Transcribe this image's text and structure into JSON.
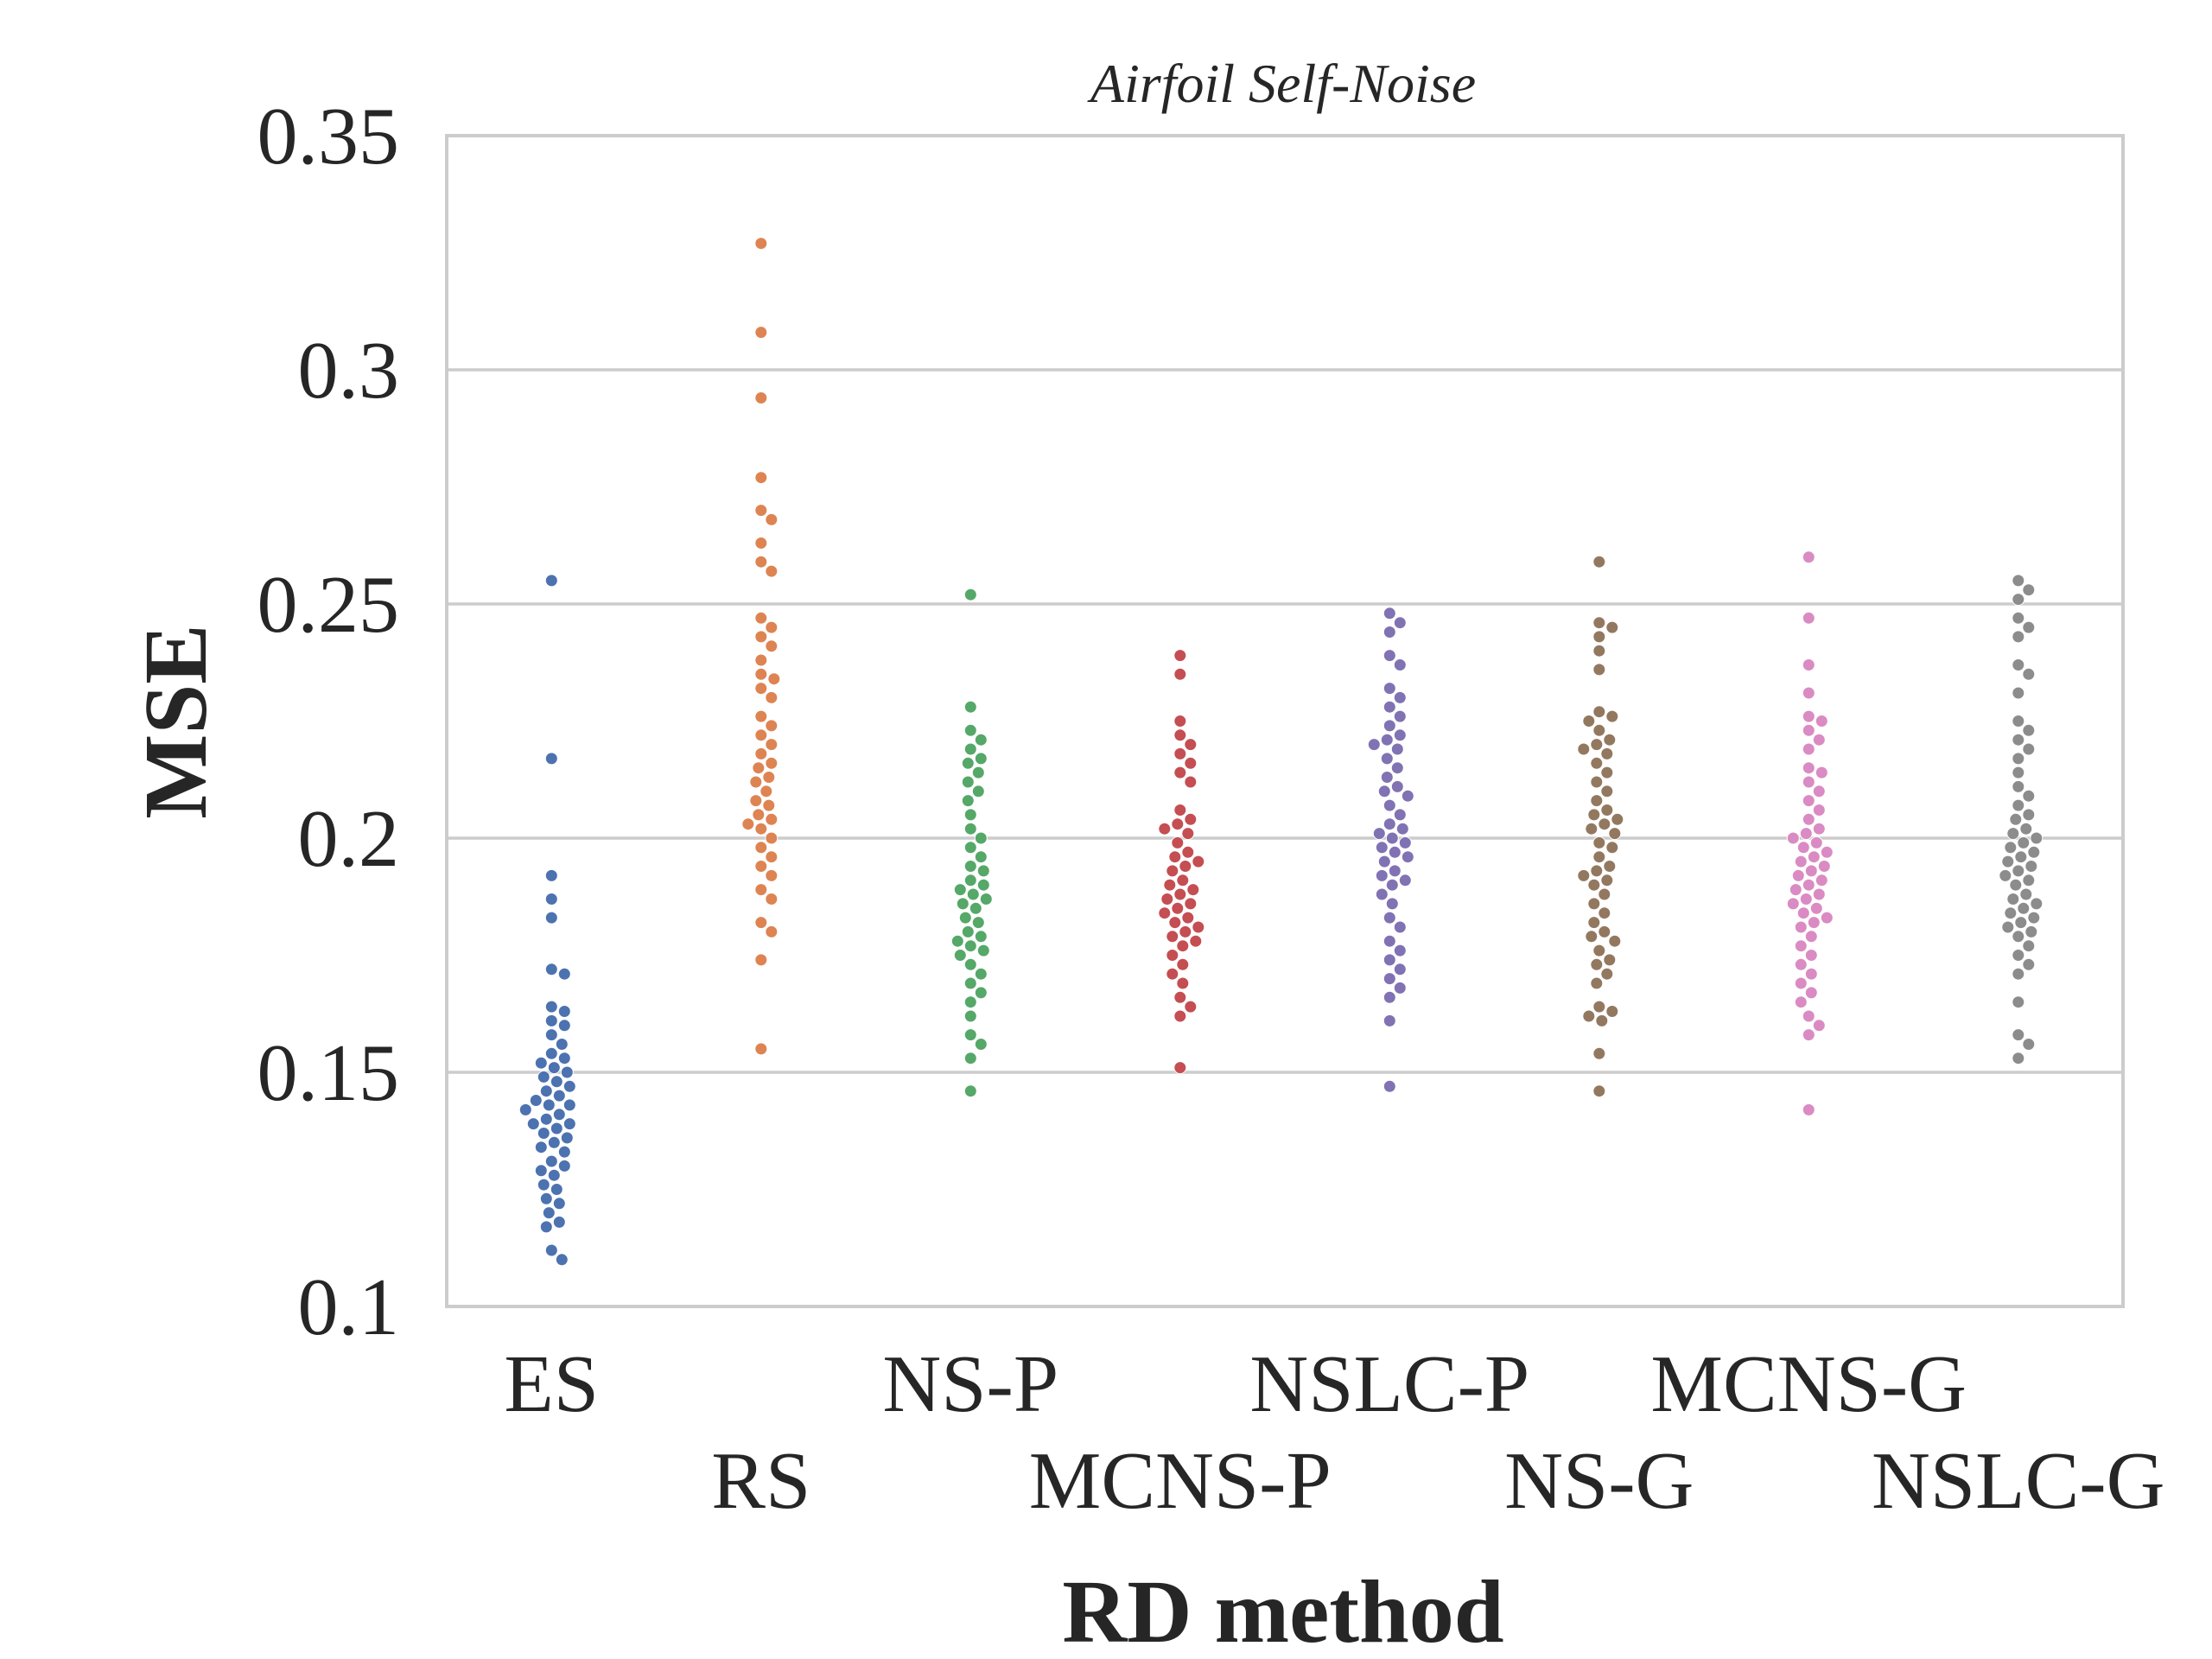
{
  "chart_data": {
    "type": "scatter",
    "subtype": "swarm",
    "title": "Airfoil Self-Noise",
    "xlabel": "RD method",
    "ylabel": "MSE",
    "ylim": [
      0.1,
      0.35
    ],
    "yticks": [
      "0.1",
      "0.15",
      "0.2",
      "0.25",
      "0.3",
      "0.35"
    ],
    "grid": "horizontal",
    "categories": [
      "ES",
      "RS",
      "NS-P",
      "MCNS-P",
      "NSLC-P",
      "NS-G",
      "MCNS-G",
      "NSLC-G"
    ],
    "series": [
      {
        "category": "ES",
        "color": "#4c72b0",
        "values": [
          0.255,
          0.217,
          0.192,
          0.187,
          0.183,
          0.172,
          0.171,
          0.164,
          0.163,
          0.161,
          0.16,
          0.158,
          0.156,
          0.154,
          0.153,
          0.152,
          0.151,
          0.15,
          0.149,
          0.148,
          0.147,
          0.146,
          0.145,
          0.144,
          0.143,
          0.143,
          0.142,
          0.141,
          0.14,
          0.139,
          0.139,
          0.138,
          0.137,
          0.136,
          0.135,
          0.134,
          0.133,
          0.131,
          0.13,
          0.129,
          0.128,
          0.126,
          0.125,
          0.123,
          0.122,
          0.12,
          0.118,
          0.117,
          0.112,
          0.11
        ]
      },
      {
        "category": "RS",
        "color": "#dd8452",
        "values": [
          0.327,
          0.308,
          0.294,
          0.277,
          0.27,
          0.268,
          0.263,
          0.259,
          0.257,
          0.247,
          0.245,
          0.243,
          0.241,
          0.238,
          0.235,
          0.234,
          0.232,
          0.23,
          0.226,
          0.224,
          0.222,
          0.22,
          0.218,
          0.216,
          0.215,
          0.213,
          0.212,
          0.21,
          0.208,
          0.207,
          0.205,
          0.204,
          0.203,
          0.202,
          0.2,
          0.198,
          0.196,
          0.194,
          0.192,
          0.189,
          0.187,
          0.182,
          0.18,
          0.174,
          0.155
        ]
      },
      {
        "category": "NS-P",
        "color": "#55a868",
        "values": [
          0.252,
          0.228,
          0.223,
          0.221,
          0.219,
          0.217,
          0.216,
          0.214,
          0.212,
          0.21,
          0.208,
          0.205,
          0.202,
          0.2,
          0.198,
          0.196,
          0.194,
          0.193,
          0.191,
          0.19,
          0.189,
          0.188,
          0.187,
          0.186,
          0.185,
          0.183,
          0.182,
          0.18,
          0.179,
          0.178,
          0.177,
          0.176,
          0.175,
          0.173,
          0.171,
          0.169,
          0.167,
          0.165,
          0.162,
          0.158,
          0.156,
          0.153,
          0.146
        ]
      },
      {
        "category": "MCNS-P",
        "color": "#c44e52",
        "values": [
          0.239,
          0.235,
          0.225,
          0.222,
          0.22,
          0.218,
          0.216,
          0.214,
          0.212,
          0.206,
          0.204,
          0.203,
          0.202,
          0.201,
          0.199,
          0.197,
          0.196,
          0.195,
          0.194,
          0.193,
          0.191,
          0.19,
          0.189,
          0.188,
          0.187,
          0.186,
          0.185,
          0.184,
          0.183,
          0.182,
          0.181,
          0.18,
          0.179,
          0.178,
          0.177,
          0.175,
          0.173,
          0.171,
          0.169,
          0.166,
          0.164,
          0.162,
          0.151
        ]
      },
      {
        "category": "NSLC-P",
        "color": "#8172b3",
        "values": [
          0.248,
          0.246,
          0.244,
          0.239,
          0.237,
          0.232,
          0.23,
          0.228,
          0.226,
          0.224,
          0.222,
          0.221,
          0.22,
          0.219,
          0.217,
          0.215,
          0.213,
          0.211,
          0.21,
          0.209,
          0.207,
          0.205,
          0.203,
          0.202,
          0.201,
          0.2,
          0.199,
          0.198,
          0.197,
          0.196,
          0.195,
          0.193,
          0.192,
          0.191,
          0.19,
          0.188,
          0.186,
          0.183,
          0.181,
          0.178,
          0.176,
          0.174,
          0.172,
          0.17,
          0.168,
          0.166,
          0.161,
          0.147
        ]
      },
      {
        "category": "NS-G",
        "color": "#937860",
        "values": [
          0.259,
          0.246,
          0.245,
          0.243,
          0.24,
          0.236,
          0.227,
          0.226,
          0.225,
          0.223,
          0.221,
          0.22,
          0.219,
          0.218,
          0.216,
          0.214,
          0.212,
          0.21,
          0.208,
          0.206,
          0.205,
          0.204,
          0.203,
          0.202,
          0.201,
          0.199,
          0.198,
          0.196,
          0.194,
          0.193,
          0.192,
          0.191,
          0.19,
          0.188,
          0.186,
          0.184,
          0.182,
          0.18,
          0.179,
          0.178,
          0.176,
          0.174,
          0.173,
          0.171,
          0.169,
          0.164,
          0.163,
          0.162,
          0.161,
          0.154,
          0.146
        ]
      },
      {
        "category": "MCNS-G",
        "color": "#da8bc3",
        "values": [
          0.26,
          0.247,
          0.237,
          0.231,
          0.226,
          0.225,
          0.223,
          0.221,
          0.219,
          0.215,
          0.214,
          0.212,
          0.21,
          0.208,
          0.206,
          0.204,
          0.202,
          0.201,
          0.2,
          0.199,
          0.198,
          0.197,
          0.196,
          0.195,
          0.194,
          0.193,
          0.192,
          0.191,
          0.19,
          0.189,
          0.188,
          0.187,
          0.186,
          0.185,
          0.184,
          0.183,
          0.182,
          0.181,
          0.179,
          0.177,
          0.175,
          0.173,
          0.171,
          0.169,
          0.167,
          0.165,
          0.162,
          0.16,
          0.158,
          0.142
        ]
      },
      {
        "category": "NSLC-G",
        "color": "#8c8c8c",
        "values": [
          0.255,
          0.253,
          0.251,
          0.247,
          0.245,
          0.243,
          0.237,
          0.235,
          0.231,
          0.225,
          0.223,
          0.221,
          0.219,
          0.217,
          0.214,
          0.211,
          0.209,
          0.207,
          0.205,
          0.204,
          0.202,
          0.201,
          0.2,
          0.199,
          0.198,
          0.197,
          0.196,
          0.195,
          0.194,
          0.193,
          0.192,
          0.191,
          0.19,
          0.188,
          0.187,
          0.186,
          0.185,
          0.184,
          0.183,
          0.182,
          0.181,
          0.18,
          0.179,
          0.177,
          0.175,
          0.173,
          0.171,
          0.165,
          0.158,
          0.156,
          0.153
        ]
      }
    ]
  }
}
